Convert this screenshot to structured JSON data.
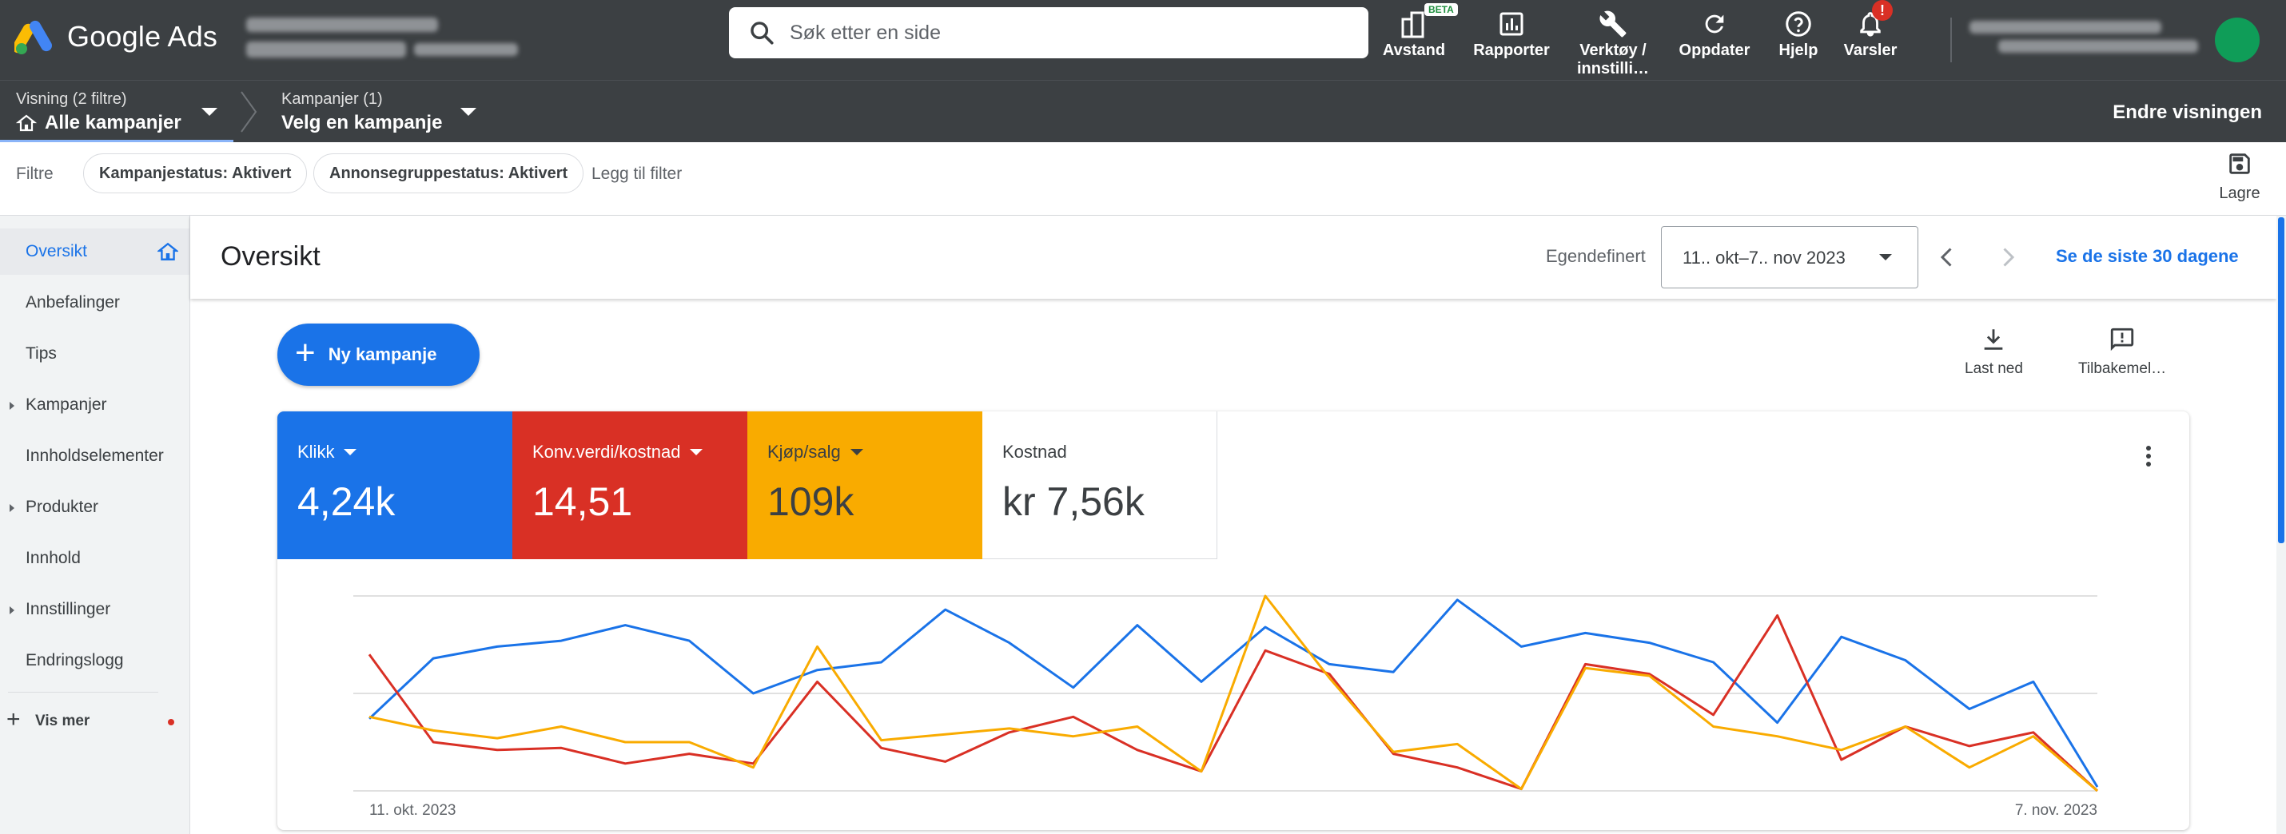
{
  "app": {
    "name": "Google Ads"
  },
  "colors": {
    "blue": "#1a73e8",
    "red": "#d93025",
    "yellow": "#f9ab00",
    "topbar": "#3c4043"
  },
  "search": {
    "placeholder": "Søk etter en side"
  },
  "toolbar": {
    "items": [
      {
        "label": "Avstand",
        "icon": "reach-icon",
        "badge": "BETA"
      },
      {
        "label": "Rapporter",
        "icon": "reports-icon"
      },
      {
        "label": "Verktøy / innstilli…",
        "icon": "wrench-icon"
      },
      {
        "label": "Oppdater",
        "icon": "refresh-icon"
      },
      {
        "label": "Hjelp",
        "icon": "help-icon"
      },
      {
        "label": "Varsler",
        "icon": "bell-icon",
        "alert": "!"
      }
    ]
  },
  "nav": {
    "view_label": "Visning (2 filtre)",
    "view_value": "Alle kampanjer",
    "campaign_label": "Kampanjer (1)",
    "campaign_value": "Velg en kampanje",
    "change_view": "Endre visningen"
  },
  "filters": {
    "label": "Filtre",
    "chips": [
      "Kampanjestatus: Aktivert",
      "Annonsegruppestatus: Aktivert"
    ],
    "add": "Legg til filter",
    "save": "Lagre"
  },
  "sidebar": {
    "items": [
      {
        "label": "Oversikt",
        "active": true
      },
      {
        "label": "Anbefalinger"
      },
      {
        "label": "Tips"
      },
      {
        "label": "Kampanjer",
        "expandable": true
      },
      {
        "label": "Innholdselementer"
      },
      {
        "label": "Produkter",
        "expandable": true
      },
      {
        "label": "Innhold"
      },
      {
        "label": "Innstillinger",
        "expandable": true
      },
      {
        "label": "Endringslogg"
      }
    ],
    "more": "Vis mer"
  },
  "header": {
    "title": "Oversikt",
    "range_type": "Egendefinert",
    "date_range": "11.. okt–7.. nov 2023",
    "last_30": "Se de siste 30 dagene"
  },
  "actions": {
    "new_campaign": "Ny kampanje",
    "download": "Last ned",
    "feedback": "Tilbakemel…"
  },
  "metrics": [
    {
      "name": "Klikk",
      "value": "4,24k",
      "color": "#1a73e8",
      "dropdown": true
    },
    {
      "name": "Konv.verdi/kostnad",
      "value": "14,51",
      "color": "#d93025",
      "dropdown": true
    },
    {
      "name": "Kjøp/salg",
      "value": "109k",
      "color": "#f9ab00",
      "dropdown": true
    },
    {
      "name": "Kostnad",
      "value": "kr 7,56k",
      "color": "#ffffff",
      "dropdown": false
    }
  ],
  "chart_data": {
    "type": "line",
    "x_start_label": "11. okt. 2023",
    "x_end_label": "7. nov. 2023",
    "ylim": [
      0,
      1
    ],
    "grid": true,
    "legend": "none",
    "series": [
      {
        "name": "Klikk",
        "color": "#1a73e8",
        "values": [
          0.37,
          0.68,
          0.74,
          0.77,
          0.85,
          0.77,
          0.5,
          0.62,
          0.66,
          0.93,
          0.76,
          0.53,
          0.85,
          0.56,
          0.84,
          0.65,
          0.61,
          0.98,
          0.74,
          0.81,
          0.76,
          0.66,
          0.35,
          0.79,
          0.67,
          0.42,
          0.56,
          0.02
        ]
      },
      {
        "name": "Konv.verdi/kostnad",
        "color": "#d93025",
        "values": [
          0.7,
          0.25,
          0.21,
          0.22,
          0.14,
          0.19,
          0.14,
          0.56,
          0.22,
          0.15,
          0.3,
          0.38,
          0.21,
          0.1,
          0.72,
          0.6,
          0.19,
          0.12,
          0.01,
          0.65,
          0.6,
          0.39,
          0.9,
          0.16,
          0.33,
          0.23,
          0.3,
          0.0
        ]
      },
      {
        "name": "Kjøp/salg",
        "color": "#f9ab00",
        "values": [
          0.38,
          0.31,
          0.27,
          0.33,
          0.25,
          0.25,
          0.12,
          0.74,
          0.26,
          0.29,
          0.32,
          0.28,
          0.33,
          0.1,
          1.0,
          0.58,
          0.2,
          0.24,
          0.01,
          0.63,
          0.59,
          0.33,
          0.28,
          0.21,
          0.33,
          0.12,
          0.28,
          0.0
        ]
      }
    ]
  }
}
